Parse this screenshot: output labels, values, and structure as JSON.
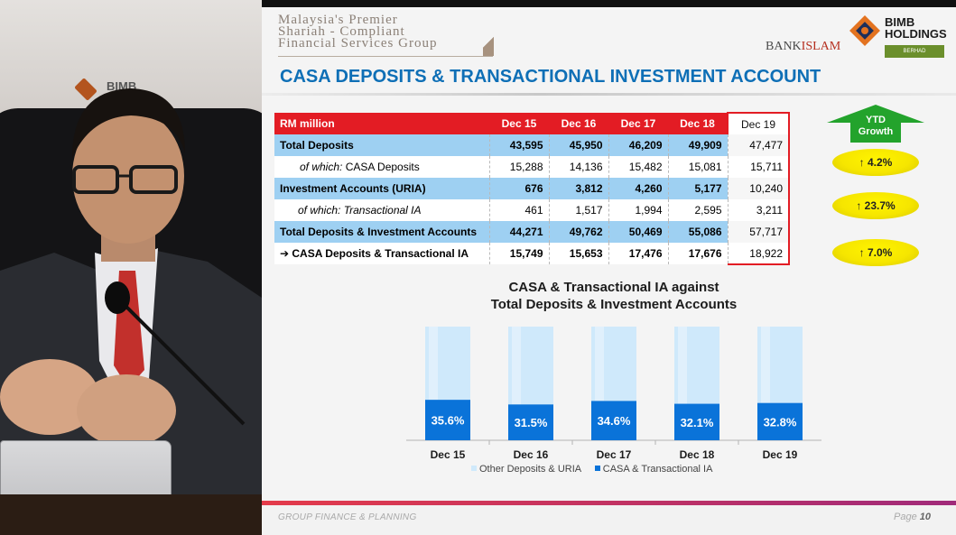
{
  "video": {
    "wall_logo_text": "BIMB"
  },
  "header": {
    "tagline": [
      "Malaysia's Premier",
      "Shariah - Compliant",
      "Financial Services Group"
    ],
    "bankislam": "BANK",
    "bankislam_mark": "ISLAM",
    "bimb_lines": [
      "BIMB",
      "HOLDINGS",
      "BERHAD"
    ],
    "title": "CASA DEPOSITS & TRANSACTIONAL INVESTMENT ACCOUNT"
  },
  "table": {
    "header_label": "RM million",
    "columns": [
      "Dec 15",
      "Dec 16",
      "Dec 17",
      "Dec 18",
      "Dec 19"
    ],
    "rows": [
      {
        "label": "Total Deposits",
        "values": [
          "43,595",
          "45,950",
          "46,209",
          "49,909",
          "47,477"
        ]
      },
      {
        "label_em": "of which:",
        "label": " CASA Deposits",
        "values": [
          "15,288",
          "14,136",
          "15,482",
          "15,081",
          "15,711"
        ]
      },
      {
        "label": "Investment Accounts (URIA)",
        "values": [
          "676",
          "3,812",
          "4,260",
          "5,177",
          "10,240"
        ]
      },
      {
        "label_em": "of which: Transactional  IA",
        "label": "",
        "values": [
          "461",
          "1,517",
          "1,994",
          "2,595",
          "3,211"
        ]
      },
      {
        "label": "Total Deposits & Investment Accounts",
        "values": [
          "44,271",
          "49,762",
          "50,469",
          "55,086",
          "57,717"
        ]
      },
      {
        "label": "➔ CASA Deposits & Transactional  IA",
        "values": [
          "15,749",
          "15,653",
          "17,476",
          "17,676",
          "18,922"
        ]
      }
    ]
  },
  "ytd": {
    "label_line1": "YTD",
    "label_line2": "Growth",
    "growth": [
      "4.2%",
      "23.7%",
      "7.0%"
    ],
    "arrow_glyph": "↑"
  },
  "chart_data": {
    "type": "bar",
    "stacked": true,
    "title": "CASA & Transactional IA against Total Deposits & Investment Accounts",
    "title_lines": [
      "CASA & Transactional IA against",
      "Total Deposits & Investment Accounts"
    ],
    "categories": [
      "Dec 15",
      "Dec 16",
      "Dec 17",
      "Dec 18",
      "Dec 19"
    ],
    "series": [
      {
        "name": "Other Deposits & URIA",
        "values": [
          64.4,
          68.5,
          65.4,
          67.9,
          67.2
        ],
        "color": "#cfe9fb"
      },
      {
        "name": "CASA & Transactional IA",
        "values": [
          35.6,
          31.5,
          34.6,
          32.1,
          32.8
        ],
        "color": "#0a73d9"
      }
    ],
    "data_labels": [
      "35.6%",
      "31.5%",
      "34.6%",
      "32.1%",
      "32.8%"
    ],
    "ylim": [
      0,
      100
    ],
    "legend_position": "bottom"
  },
  "footer": {
    "left": "GROUP FINANCE & PLANNING",
    "page_label": "Page",
    "page_number": "10"
  },
  "colors": {
    "title_blue": "#0e6fb6",
    "header_red": "#e31c24",
    "row_blue": "#9ed0f2",
    "ytd_green": "#23a32c",
    "growth_yellow": "#f6e600"
  }
}
